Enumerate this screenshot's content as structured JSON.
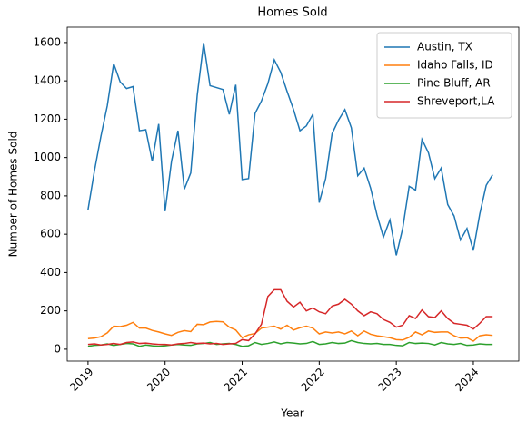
{
  "chart_data": {
    "type": "line",
    "title": "Homes Sold",
    "x_label": "Year",
    "y_label": "Number of Homes Sold",
    "x": [
      2019,
      2019.083,
      2019.167,
      2019.25,
      2019.333,
      2019.417,
      2019.5,
      2019.583,
      2019.667,
      2019.75,
      2019.833,
      2019.917,
      2020,
      2020.083,
      2020.167,
      2020.25,
      2020.333,
      2020.417,
      2020.5,
      2020.583,
      2020.667,
      2020.75,
      2020.833,
      2020.917,
      2021,
      2021.083,
      2021.167,
      2021.25,
      2021.333,
      2021.417,
      2021.5,
      2021.583,
      2021.667,
      2021.75,
      2021.833,
      2021.917,
      2022,
      2022.083,
      2022.167,
      2022.25,
      2022.333,
      2022.417,
      2022.5,
      2022.583,
      2022.667,
      2022.75,
      2022.833,
      2022.917,
      2023,
      2023.083,
      2023.167,
      2023.25,
      2023.333,
      2023.417,
      2023.5,
      2023.583,
      2023.667,
      2023.75,
      2023.833,
      2023.917,
      2024,
      2024.083,
      2024.167,
      2024.25
    ],
    "series": [
      {
        "name": "Austin, TX",
        "color": "#1f77b4",
        "values": [
          728,
          930,
          1110,
          1270,
          1490,
          1395,
          1360,
          1370,
          1140,
          1145,
          980,
          1175,
          720,
          980,
          1140,
          835,
          920,
          1325,
          1598,
          1375,
          1365,
          1355,
          1225,
          1380,
          885,
          890,
          1230,
          1295,
          1385,
          1510,
          1445,
          1345,
          1250,
          1140,
          1165,
          1225,
          765,
          890,
          1125,
          1195,
          1250,
          1155,
          905,
          945,
          840,
          700,
          585,
          675,
          490,
          630,
          850,
          830,
          1095,
          1025,
          890,
          945,
          755,
          695,
          570,
          630,
          515,
          705,
          855,
          910
        ]
      },
      {
        "name": "Idaho Falls, ID",
        "color": "#ff7f0e",
        "values": [
          55,
          58,
          65,
          85,
          120,
          118,
          125,
          140,
          110,
          110,
          98,
          90,
          80,
          72,
          88,
          97,
          92,
          130,
          128,
          142,
          145,
          143,
          115,
          100,
          60,
          75,
          82,
          110,
          115,
          120,
          105,
          125,
          100,
          112,
          120,
          110,
          80,
          90,
          85,
          90,
          80,
          95,
          70,
          95,
          78,
          70,
          65,
          60,
          50,
          48,
          62,
          90,
          75,
          95,
          88,
          90,
          90,
          70,
          58,
          60,
          42,
          70,
          75,
          72
        ]
      },
      {
        "name": "Pine Bluff, AR",
        "color": "#2ca02c",
        "values": [
          15,
          20,
          22,
          28,
          20,
          25,
          30,
          28,
          15,
          22,
          18,
          15,
          18,
          22,
          25,
          22,
          20,
          28,
          30,
          35,
          25,
          28,
          30,
          25,
          15,
          18,
          35,
          25,
          30,
          38,
          28,
          35,
          32,
          28,
          30,
          40,
          25,
          28,
          35,
          30,
          32,
          45,
          35,
          30,
          28,
          30,
          25,
          25,
          20,
          18,
          35,
          30,
          32,
          30,
          22,
          35,
          28,
          25,
          30,
          20,
          22,
          28,
          25,
          25
        ]
      },
      {
        "name": "Shreveport,LA",
        "color": "#d62728",
        "values": [
          25,
          28,
          22,
          25,
          30,
          25,
          35,
          38,
          30,
          32,
          28,
          25,
          25,
          22,
          28,
          30,
          35,
          30,
          32,
          28,
          30,
          25,
          28,
          30,
          50,
          45,
          80,
          130,
          275,
          310,
          310,
          250,
          220,
          245,
          200,
          215,
          195,
          185,
          225,
          235,
          260,
          235,
          200,
          175,
          195,
          185,
          155,
          140,
          115,
          125,
          175,
          160,
          205,
          170,
          165,
          200,
          160,
          135,
          130,
          125,
          105,
          135,
          170,
          170
        ]
      }
    ],
    "xlim": [
      2018.73,
      2024.59
    ],
    "xticks": [
      2019,
      2020,
      2021,
      2022,
      2023,
      2024
    ],
    "ylim": [
      -62,
      1680
    ],
    "yticks": [
      0,
      200,
      400,
      600,
      800,
      1000,
      1200,
      1400,
      1600
    ],
    "legend": "upper right"
  }
}
